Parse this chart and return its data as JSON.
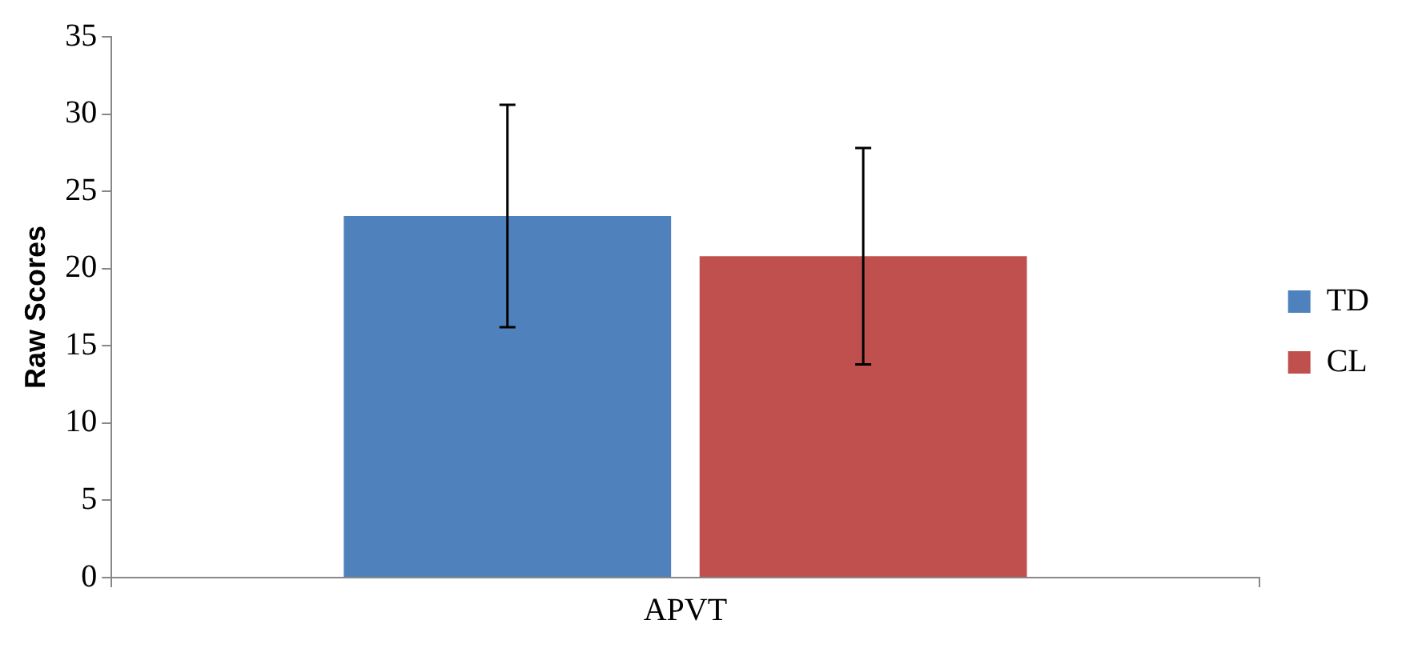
{
  "chart_data": {
    "type": "bar",
    "ylabel": "Raw Scores",
    "categories": [
      "APVT"
    ],
    "series": [
      {
        "name": "TD",
        "color": "#4f81bd",
        "values": [
          23.4
        ],
        "errors": [
          7.2
        ]
      },
      {
        "name": "CL",
        "color": "#c0504d",
        "values": [
          20.8
        ],
        "errors": [
          7.0
        ]
      }
    ],
    "ylim": [
      0,
      35
    ],
    "yticks": [
      0,
      5,
      10,
      15,
      20,
      25,
      30,
      35
    ],
    "grid": false,
    "legend": "right"
  }
}
